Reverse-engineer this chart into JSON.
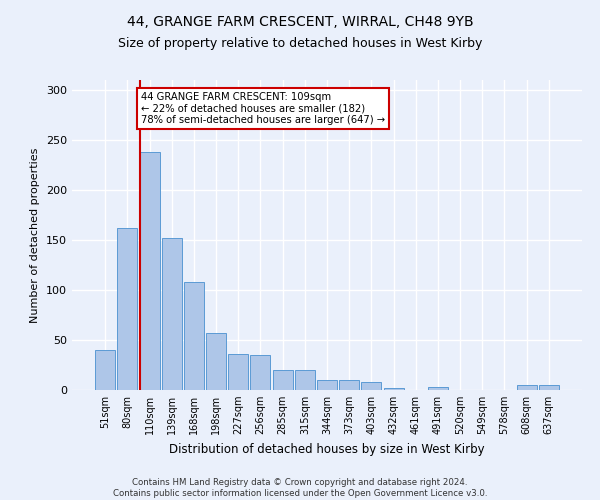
{
  "title": "44, GRANGE FARM CRESCENT, WIRRAL, CH48 9YB",
  "subtitle": "Size of property relative to detached houses in West Kirby",
  "xlabel": "Distribution of detached houses by size in West Kirby",
  "ylabel": "Number of detached properties",
  "bar_labels": [
    "51sqm",
    "80sqm",
    "110sqm",
    "139sqm",
    "168sqm",
    "198sqm",
    "227sqm",
    "256sqm",
    "285sqm",
    "315sqm",
    "344sqm",
    "373sqm",
    "403sqm",
    "432sqm",
    "461sqm",
    "491sqm",
    "520sqm",
    "549sqm",
    "578sqm",
    "608sqm",
    "637sqm"
  ],
  "bar_values": [
    40,
    162,
    238,
    152,
    108,
    57,
    36,
    35,
    20,
    20,
    10,
    10,
    8,
    2,
    0,
    3,
    0,
    0,
    0,
    5,
    5
  ],
  "bar_color": "#aec6e8",
  "bar_edge_color": "#5b9bd5",
  "background_color": "#eaf0fb",
  "grid_color": "#ffffff",
  "ylim": [
    0,
    310
  ],
  "yticks": [
    0,
    50,
    100,
    150,
    200,
    250,
    300
  ],
  "annotation_text": "44 GRANGE FARM CRESCENT: 109sqm\n← 22% of detached houses are smaller (182)\n78% of semi-detached houses are larger (647) →",
  "annotation_box_color": "#ffffff",
  "annotation_box_edge": "#cc0000",
  "footnote": "Contains HM Land Registry data © Crown copyright and database right 2024.\nContains public sector information licensed under the Open Government Licence v3.0."
}
